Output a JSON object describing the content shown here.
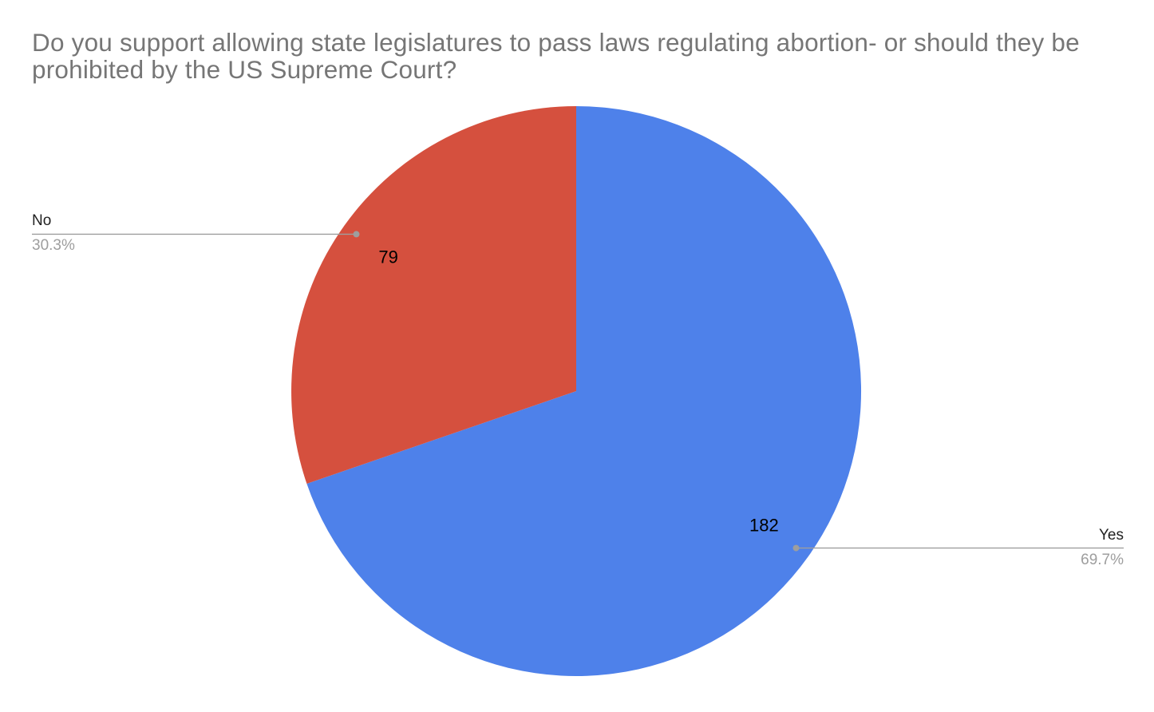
{
  "title_lines": [
    "Do you support allowing state legislatures to pass laws regulating abortion- or should they be",
    "prohibited by the US Supreme Court?"
  ],
  "chart_data": {
    "type": "pie",
    "title": "Do you support allowing state legislatures to pass laws regulating abortion- or should they be prohibited by the US Supreme Court?",
    "labeling": "outside-callouts-with-leader-lines",
    "legend_position": "none",
    "start_angle": "12-oclock-clockwise",
    "slices": [
      {
        "label": "Yes",
        "value": 182,
        "pct_label": "69.7%",
        "color": "#4e81ea",
        "callout_side": "right"
      },
      {
        "label": "No",
        "value": 79,
        "pct_label": "30.3%",
        "color": "#d5503e",
        "callout_side": "left"
      }
    ]
  },
  "colors": {
    "background": "#ffffff",
    "title_text": "#767676",
    "value_label": "#000000",
    "callout_label": "#212121",
    "callout_pct": "#9e9e9e",
    "leader_line": "#9e9e9e"
  }
}
